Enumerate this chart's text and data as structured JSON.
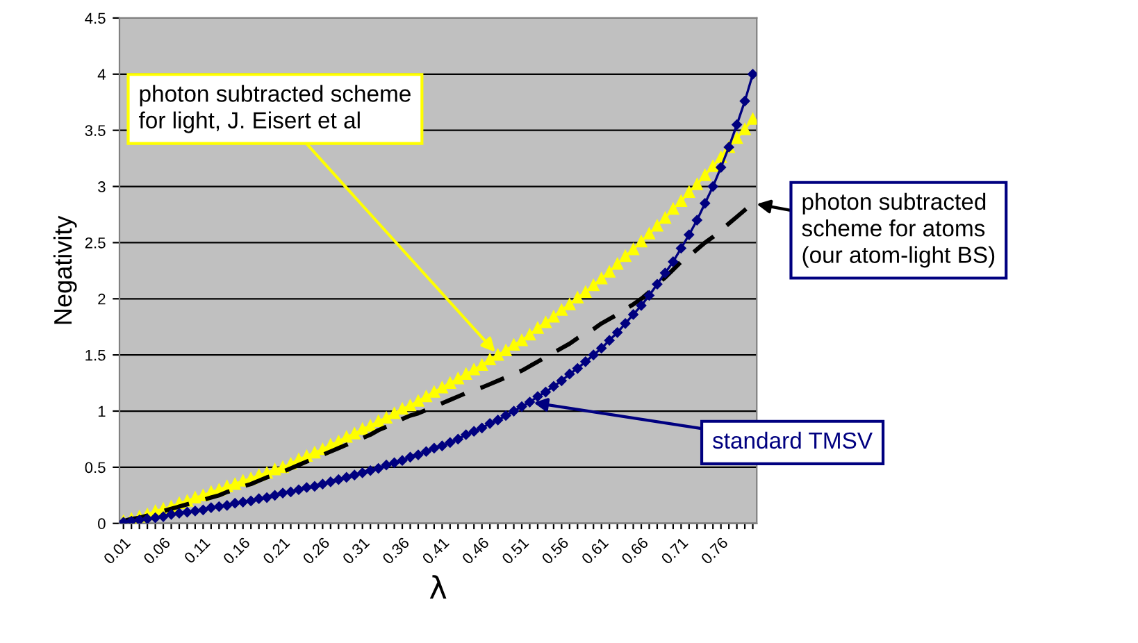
{
  "chart_data": {
    "type": "line",
    "xlabel": "λ",
    "ylabel": "Negativity",
    "categories": [
      "0.01",
      null,
      null,
      null,
      null,
      "0.06",
      null,
      null,
      null,
      null,
      "0.11",
      null,
      null,
      null,
      null,
      "0.16",
      null,
      null,
      null,
      null,
      "0.21",
      null,
      null,
      null,
      null,
      "0.26",
      null,
      null,
      null,
      null,
      "0.31",
      null,
      null,
      null,
      null,
      "0.36",
      null,
      null,
      null,
      null,
      "0.41",
      null,
      null,
      null,
      null,
      "0.46",
      null,
      null,
      null,
      null,
      "0.51",
      null,
      null,
      null,
      null,
      "0.56",
      null,
      null,
      null,
      null,
      "0.61",
      null,
      null,
      null,
      null,
      "0.66",
      null,
      null,
      null,
      null,
      "0.71",
      null,
      null,
      null,
      null,
      "0.76",
      null,
      null,
      null,
      null
    ],
    "series": [
      {
        "name": "photon subtracted scheme for light, J. Eisert et al",
        "color": "#ffff00",
        "marker": "triangle",
        "line_style": "solid",
        "values": [
          0.02,
          0.04,
          0.06,
          0.08,
          0.11,
          0.13,
          0.15,
          0.18,
          0.2,
          0.23,
          0.25,
          0.28,
          0.3,
          0.33,
          0.35,
          0.38,
          0.4,
          0.43,
          0.45,
          0.48,
          0.5,
          0.53,
          0.57,
          0.6,
          0.63,
          0.66,
          0.7,
          0.73,
          0.77,
          0.8,
          0.84,
          0.87,
          0.91,
          0.94,
          0.98,
          1.02,
          1.05,
          1.09,
          1.13,
          1.17,
          1.21,
          1.25,
          1.29,
          1.33,
          1.37,
          1.41,
          1.46,
          1.5,
          1.54,
          1.59,
          1.63,
          1.68,
          1.74,
          1.79,
          1.84,
          1.9,
          1.95,
          2.01,
          2.06,
          2.12,
          2.18,
          2.24,
          2.31,
          2.38,
          2.44,
          2.51,
          2.58,
          2.65,
          2.72,
          2.8,
          2.87,
          2.95,
          3.02,
          3.1,
          3.18,
          3.26,
          3.35,
          3.43,
          3.51,
          3.6
        ]
      },
      {
        "name": "photon subtracted scheme for atoms (our atom-light BS)",
        "color": "#000000",
        "marker": "none",
        "line_style": "dashed",
        "values": [
          0.02,
          0.04,
          0.05,
          0.07,
          0.09,
          0.11,
          0.13,
          0.15,
          0.17,
          0.19,
          0.21,
          0.23,
          0.25,
          0.28,
          0.3,
          0.33,
          0.35,
          0.38,
          0.41,
          0.43,
          0.46,
          0.49,
          0.52,
          0.55,
          0.58,
          0.61,
          0.64,
          0.67,
          0.7,
          0.73,
          0.76,
          0.79,
          0.83,
          0.86,
          0.89,
          0.93,
          0.96,
          0.98,
          1.01,
          1.04,
          1.07,
          1.1,
          1.13,
          1.16,
          1.19,
          1.21,
          1.24,
          1.27,
          1.3,
          1.33,
          1.36,
          1.4,
          1.44,
          1.48,
          1.52,
          1.56,
          1.6,
          1.65,
          1.69,
          1.73,
          1.78,
          1.82,
          1.86,
          1.91,
          1.95,
          2.0,
          2.06,
          2.13,
          2.19,
          2.26,
          2.33,
          2.38,
          2.44,
          2.5,
          2.55,
          2.61,
          2.67,
          2.73,
          2.79,
          2.85
        ]
      },
      {
        "name": "standard TMSV",
        "color": "#000080",
        "marker": "diamond",
        "line_style": "solid",
        "values": [
          0.01,
          0.02,
          0.03,
          0.04,
          0.05,
          0.06,
          0.08,
          0.09,
          0.1,
          0.11,
          0.12,
          0.14,
          0.15,
          0.16,
          0.18,
          0.19,
          0.2,
          0.22,
          0.23,
          0.25,
          0.27,
          0.28,
          0.3,
          0.32,
          0.33,
          0.35,
          0.37,
          0.39,
          0.41,
          0.43,
          0.45,
          0.47,
          0.49,
          0.52,
          0.54,
          0.56,
          0.59,
          0.61,
          0.64,
          0.67,
          0.69,
          0.72,
          0.75,
          0.79,
          0.82,
          0.85,
          0.89,
          0.92,
          0.96,
          1.0,
          1.04,
          1.08,
          1.13,
          1.17,
          1.22,
          1.27,
          1.33,
          1.38,
          1.44,
          1.5,
          1.56,
          1.63,
          1.7,
          1.78,
          1.86,
          1.94,
          2.03,
          2.13,
          2.23,
          2.33,
          2.45,
          2.57,
          2.7,
          2.85,
          3.0,
          3.17,
          3.35,
          3.55,
          3.76,
          4.0
        ]
      }
    ],
    "ylim": [
      0,
      4.5
    ],
    "yticks": [
      0,
      0.5,
      1,
      1.5,
      2,
      2.5,
      3,
      3.5,
      4,
      4.5
    ],
    "grid": "y",
    "legend": "right"
  }
}
